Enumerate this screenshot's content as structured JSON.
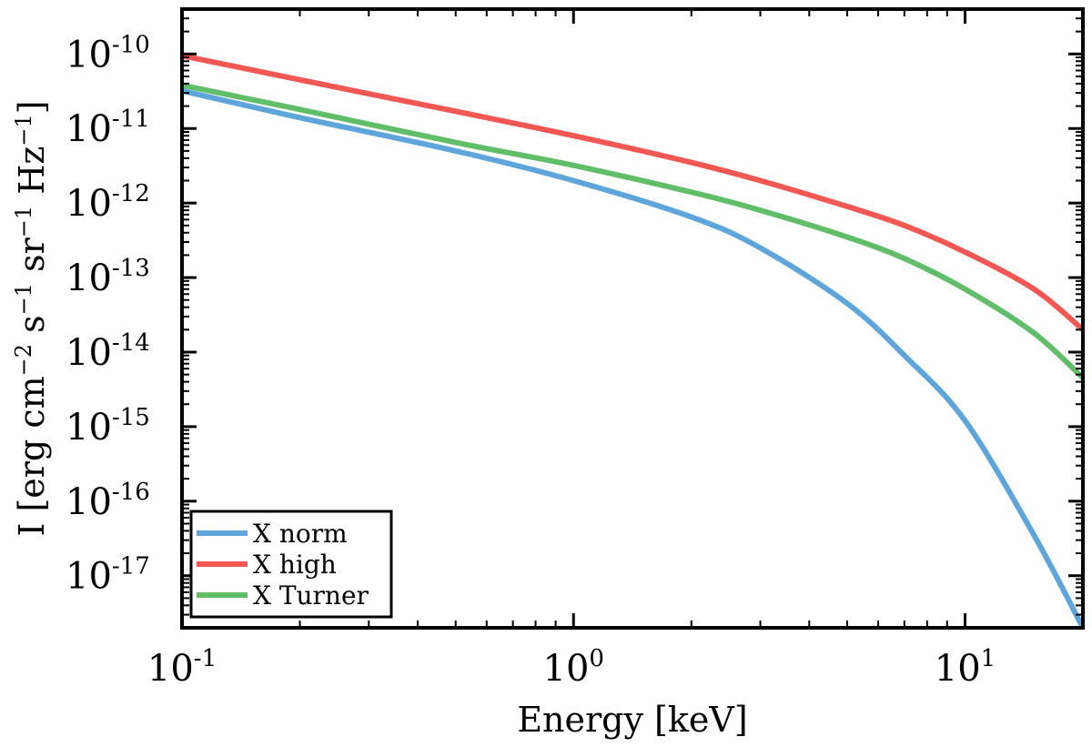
{
  "chart_data": {
    "type": "line",
    "xscale": "log",
    "yscale": "log",
    "xlim": [
      0.1,
      20
    ],
    "ylim": [
      2e-18,
      4e-10
    ],
    "xlabel": "Energy [keV]",
    "ylabel": {
      "prefix": "I [erg cm",
      "exp1": "−2",
      "mid1": " s",
      "exp2": "−1",
      "mid2": " sr",
      "exp3": "−1",
      "mid3": " Hz",
      "exp4": "−1",
      "suffix": "]"
    },
    "xticks": [
      {
        "value": 0.1,
        "base": "10",
        "exp": "-1"
      },
      {
        "value": 1,
        "base": "10",
        "exp": "0"
      },
      {
        "value": 10,
        "base": "10",
        "exp": "1"
      }
    ],
    "yticks": [
      {
        "value": 1e-10,
        "base": "10",
        "exp": "-10"
      },
      {
        "value": 1e-11,
        "base": "10",
        "exp": "-11"
      },
      {
        "value": 1e-12,
        "base": "10",
        "exp": "-12"
      },
      {
        "value": 1e-13,
        "base": "10",
        "exp": "-13"
      },
      {
        "value": 1e-14,
        "base": "10",
        "exp": "-14"
      },
      {
        "value": 1e-15,
        "base": "10",
        "exp": "-15"
      },
      {
        "value": 1e-16,
        "base": "10",
        "exp": "-16"
      },
      {
        "value": 1e-17,
        "base": "10",
        "exp": "-17"
      }
    ],
    "legend_position": "bottom-left",
    "series": [
      {
        "name": "X norm",
        "color": "#5da5da",
        "x": [
          0.1,
          0.2,
          0.5,
          1,
          2,
          3,
          5,
          7,
          10,
          15,
          20
        ],
        "y": [
          3.2e-11,
          1.4e-11,
          5e-12,
          2e-12,
          6.5e-13,
          2.5e-13,
          4.5e-14,
          9e-15,
          1.2e-15,
          3.5e-17,
          2e-18
        ]
      },
      {
        "name": "X high",
        "color": "#f15854",
        "x": [
          0.1,
          0.2,
          0.5,
          1,
          2,
          3,
          5,
          7,
          10,
          15,
          20
        ],
        "y": [
          9.5e-11,
          4.5e-11,
          1.7e-11,
          8e-12,
          3.5e-12,
          2e-12,
          9e-13,
          5e-13,
          2.2e-13,
          7e-14,
          2e-14
        ]
      },
      {
        "name": "X Turner",
        "color": "#60bd68",
        "x": [
          0.1,
          0.2,
          0.5,
          1,
          2,
          3,
          5,
          7,
          10,
          15,
          20
        ],
        "y": [
          3.8e-11,
          1.8e-11,
          6.5e-12,
          3.2e-12,
          1.4e-12,
          8e-13,
          3.5e-13,
          1.8e-13,
          7e-14,
          1.8e-14,
          4.5e-15
        ]
      }
    ]
  }
}
